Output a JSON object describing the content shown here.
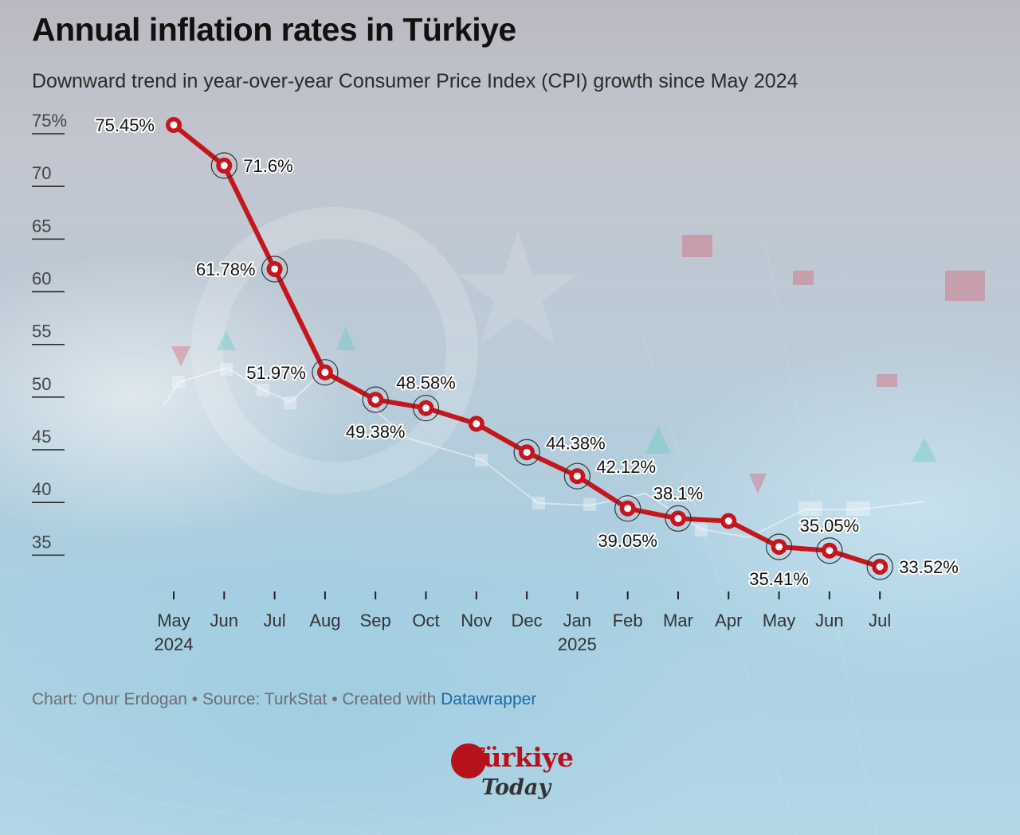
{
  "title": "Annual inflation rates in Türkiye",
  "subtitle": "Downward trend in year-over-year Consumer Price Index (CPI) growth since May 2024",
  "footer": {
    "text": "Chart: Onur Erdogan • Source: TurkStat • Created with ",
    "link": "Datawrapper"
  },
  "brand": {
    "top": "Türkiye",
    "bottom": "Today"
  },
  "colors": {
    "line": "#c4161c",
    "marker_fill": "#ffffff",
    "axis": "#222222"
  },
  "chart_data": {
    "type": "line",
    "title": "Annual inflation rates in Türkiye",
    "ylim": [
      30,
      75
    ],
    "yticks": [
      75,
      70,
      65,
      60,
      55,
      50,
      45,
      40,
      35
    ],
    "ytick_labels": [
      "75%",
      "70",
      "65",
      "60",
      "55",
      "50",
      "45",
      "40",
      "35"
    ],
    "grid": false,
    "categories": [
      "May",
      "Jun",
      "Jul",
      "Aug",
      "Sep",
      "Oct",
      "Nov",
      "Dec",
      "Jan",
      "Feb",
      "Mar",
      "Apr",
      "May",
      "Jun",
      "Jul"
    ],
    "year_labels": {
      "0": "2024",
      "8": "2025"
    },
    "series": [
      {
        "values": [
          75.45,
          71.6,
          61.78,
          51.97,
          49.38,
          48.58,
          47.09,
          44.38,
          42.12,
          39.05,
          38.1,
          37.86,
          35.41,
          35.05,
          33.52
        ],
        "labels": [
          "75.45%",
          "71.6%",
          "61.78%",
          "51.97%",
          "49.38%",
          "48.58%",
          "",
          "44.38%",
          "42.12%",
          "39.05%",
          "38.1%",
          "",
          "35.41%",
          "35.05%",
          "33.52%"
        ]
      }
    ]
  }
}
